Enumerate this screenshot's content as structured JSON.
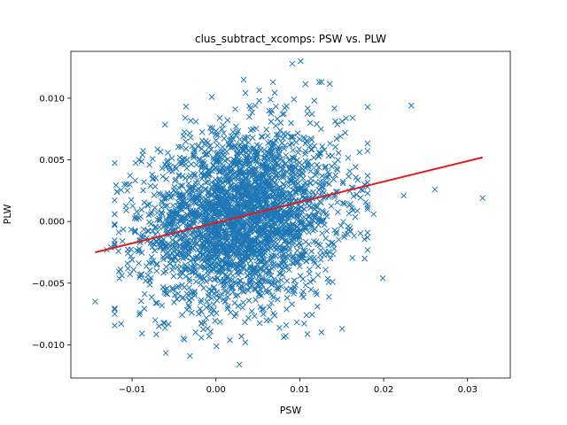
{
  "chart_data": {
    "type": "scatter",
    "title": "clus_subtract_xcomps: PSW vs. PLW",
    "xlabel": "PSW",
    "ylabel": "PLW",
    "xlim": [
      -0.0173,
      0.0351
    ],
    "ylim": [
      -0.0127,
      0.0138
    ],
    "xticks": [
      -0.01,
      0.0,
      0.01,
      0.02,
      0.03
    ],
    "xtick_labels": [
      "−0.01",
      "0.00",
      "0.01",
      "0.02",
      "0.03"
    ],
    "yticks": [
      -0.01,
      -0.005,
      0.0,
      0.005,
      0.01
    ],
    "ytick_labels": [
      "−0.010",
      "−0.005",
      "0.000",
      "0.005",
      "0.010"
    ],
    "grid": false,
    "marker": "x",
    "marker_color": "#1f77b4",
    "fit_line_color": "#e31a1c",
    "cluster": {
      "center": [
        0.003,
        0.0003
      ],
      "std": [
        0.0058,
        0.0035
      ],
      "n_points": 3000
    },
    "outliers": [
      {
        "x": 0.0318,
        "y": 0.0019
      },
      {
        "x": 0.0261,
        "y": 0.0026
      },
      {
        "x": 0.0233,
        "y": 0.0094
      },
      {
        "x": 0.0224,
        "y": 0.0021
      },
      {
        "x": 0.0199,
        "y": -0.0046
      },
      {
        "x": 0.0188,
        "y": 0.0006
      },
      {
        "x": 0.0177,
        "y": 0.003
      },
      {
        "x": 0.0163,
        "y": 0.0084
      },
      {
        "x": 0.0154,
        "y": 0.0072
      },
      {
        "x": 0.0145,
        "y": 0.0042
      },
      {
        "x": 0.0141,
        "y": -0.0022
      },
      {
        "x": 0.0139,
        "y": -0.0049
      },
      {
        "x": 0.0123,
        "y": 0.0113
      },
      {
        "x": 0.0121,
        "y": -0.0069
      },
      {
        "x": 0.0101,
        "y": 0.013
      },
      {
        "x": 0.0091,
        "y": 0.0128
      },
      {
        "x": 0.0108,
        "y": -0.0076
      },
      {
        "x": 0.0068,
        "y": 0.0113
      },
      {
        "x": 0.0033,
        "y": 0.0115
      },
      {
        "x": 0.0028,
        "y": -0.0116
      },
      {
        "x": -0.0005,
        "y": 0.0101
      },
      {
        "x": -0.0031,
        "y": -0.0109
      },
      {
        "x": -0.0068,
        "y": -0.0085
      },
      {
        "x": -0.0103,
        "y": 0.003
      },
      {
        "x": -0.0107,
        "y": 0.0009
      },
      {
        "x": -0.0113,
        "y": -0.0083
      },
      {
        "x": -0.0118,
        "y": 0.0024
      },
      {
        "x": -0.0125,
        "y": -0.0021
      },
      {
        "x": -0.013,
        "y": -0.0023
      },
      {
        "x": -0.0144,
        "y": -0.0065
      }
    ],
    "fit_line": {
      "x": [
        -0.0144,
        0.0318
      ],
      "y": [
        -0.0025,
        0.0052
      ]
    }
  }
}
